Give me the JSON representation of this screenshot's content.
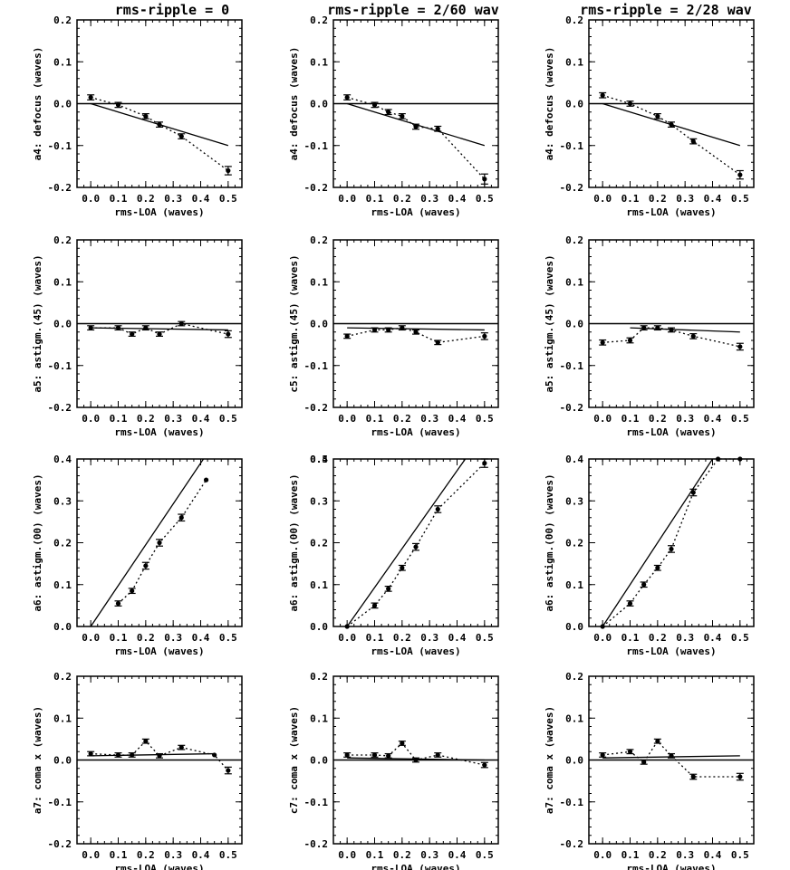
{
  "column_titles": [
    "rms-ripple = 0",
    "rms-ripple = 2/60 wav",
    "rms-ripple = 2/28 wav"
  ],
  "colors": {
    "line": "#000000",
    "background": "#ffffff"
  },
  "chart_data": [
    {
      "type": "line",
      "row": 0,
      "col": 0,
      "xlabel": "rms-LOA (waves)",
      "ylabel": "a4: defocus (waves)",
      "xlim": [
        -0.05,
        0.55
      ],
      "ylim": [
        -0.2,
        0.2
      ],
      "xticks": [
        "0.0",
        "0.1",
        "0.2",
        "0.3",
        "0.4",
        "0.5"
      ],
      "yticks": [
        "-0.2",
        "-0.1",
        "0.0",
        "0.1",
        "0.2"
      ],
      "reference_line": {
        "x": [
          0.0,
          0.5
        ],
        "y": [
          0.0,
          -0.1
        ]
      },
      "series": [
        {
          "x": [
            0.0,
            0.1,
            0.2,
            0.25,
            0.33,
            0.5
          ],
          "y": [
            0.015,
            -0.003,
            -0.03,
            -0.05,
            -0.078,
            -0.16
          ],
          "err": [
            0.006,
            0.006,
            0.006,
            0.006,
            0.006,
            0.01
          ]
        }
      ]
    },
    {
      "type": "line",
      "row": 0,
      "col": 1,
      "xlabel": "rms-LOA (waves)",
      "ylabel": "a4: defocus (waves)",
      "xlim": [
        -0.05,
        0.55
      ],
      "ylim": [
        -0.2,
        0.2
      ],
      "xticks": [
        "0.0",
        "0.1",
        "0.2",
        "0.3",
        "0.4",
        "0.5"
      ],
      "yticks": [
        "-0.2",
        "-0.1",
        "0.0",
        "0.1",
        "0.2"
      ],
      "reference_line": {
        "x": [
          0.0,
          0.5
        ],
        "y": [
          0.0,
          -0.1
        ]
      },
      "series": [
        {
          "x": [
            0.0,
            0.1,
            0.15,
            0.2,
            0.25,
            0.33,
            0.5
          ],
          "y": [
            0.015,
            -0.003,
            -0.02,
            -0.03,
            -0.055,
            -0.06,
            -0.18
          ],
          "err": [
            0.006,
            0.006,
            0.006,
            0.006,
            0.006,
            0.006,
            0.012
          ]
        }
      ]
    },
    {
      "type": "line",
      "row": 0,
      "col": 2,
      "xlabel": "rms-LOA (waves)",
      "ylabel": "a4: defocus (waves)",
      "xlim": [
        -0.05,
        0.55
      ],
      "ylim": [
        -0.2,
        0.2
      ],
      "xticks": [
        "0.0",
        "0.1",
        "0.2",
        "0.3",
        "0.4",
        "0.5"
      ],
      "yticks": [
        "-0.2",
        "-0.1",
        "0.0",
        "0.1",
        "0.2"
      ],
      "reference_line": {
        "x": [
          0.0,
          0.5
        ],
        "y": [
          0.0,
          -0.1
        ]
      },
      "series": [
        {
          "x": [
            0.0,
            0.1,
            0.2,
            0.25,
            0.33,
            0.5
          ],
          "y": [
            0.02,
            0.0,
            -0.03,
            -0.05,
            -0.09,
            -0.17
          ],
          "err": [
            0.006,
            0.006,
            0.006,
            0.006,
            0.006,
            0.01
          ]
        }
      ]
    },
    {
      "type": "line",
      "row": 1,
      "col": 0,
      "xlabel": "rms-LOA (waves)",
      "ylabel": "a5: astigm.(45) (waves)",
      "xlim": [
        -0.05,
        0.55
      ],
      "ylim": [
        -0.2,
        0.2
      ],
      "xticks": [
        "0.0",
        "0.1",
        "0.2",
        "0.3",
        "0.4",
        "0.5"
      ],
      "yticks": [
        "-0.2",
        "-0.1",
        "0.0",
        "0.1",
        "0.2"
      ],
      "reference_line": {
        "x": [
          0.0,
          0.5
        ],
        "y": [
          -0.01,
          -0.015
        ]
      },
      "series": [
        {
          "x": [
            0.0,
            0.1,
            0.15,
            0.2,
            0.25,
            0.33,
            0.5
          ],
          "y": [
            -0.01,
            -0.01,
            -0.025,
            -0.01,
            -0.025,
            0.0,
            -0.025
          ],
          "err": [
            0.005,
            0.005,
            0.005,
            0.005,
            0.005,
            0.005,
            0.008
          ]
        }
      ]
    },
    {
      "type": "line",
      "row": 1,
      "col": 1,
      "xlabel": "rms-LOA (waves)",
      "ylabel": "c5: astigm.(45) (waves)",
      "xlim": [
        -0.05,
        0.55
      ],
      "ylim": [
        -0.2,
        0.2
      ],
      "xticks": [
        "0.0",
        "0.1",
        "0.2",
        "0.3",
        "0.4",
        "0.5"
      ],
      "yticks": [
        "-0.2",
        "-0.1",
        "0.0",
        "0.1",
        "0.2"
      ],
      "reference_line": {
        "x": [
          0.0,
          0.5
        ],
        "y": [
          -0.01,
          -0.015
        ]
      },
      "series": [
        {
          "x": [
            0.0,
            0.1,
            0.15,
            0.2,
            0.25,
            0.33,
            0.5
          ],
          "y": [
            -0.03,
            -0.015,
            -0.015,
            -0.01,
            -0.02,
            -0.045,
            -0.03
          ],
          "err": [
            0.005,
            0.005,
            0.005,
            0.005,
            0.005,
            0.005,
            0.008
          ]
        }
      ]
    },
    {
      "type": "line",
      "row": 1,
      "col": 2,
      "xlabel": "rms-LOA (waves)",
      "ylabel": "a5: astigm.(45) (waves)",
      "xlim": [
        -0.05,
        0.55
      ],
      "ylim": [
        -0.2,
        0.2
      ],
      "xticks": [
        "0.0",
        "0.1",
        "0.2",
        "0.3",
        "0.4",
        "0.5"
      ],
      "yticks": [
        "-0.2",
        "-0.1",
        "0.0",
        "0.1",
        "0.2"
      ],
      "reference_line": {
        "x": [
          0.1,
          0.5
        ],
        "y": [
          -0.01,
          -0.02
        ]
      },
      "series": [
        {
          "x": [
            0.0,
            0.1,
            0.15,
            0.2,
            0.25,
            0.33,
            0.5
          ],
          "y": [
            -0.045,
            -0.04,
            -0.01,
            -0.01,
            -0.015,
            -0.03,
            -0.055
          ],
          "err": [
            0.006,
            0.006,
            0.005,
            0.005,
            0.005,
            0.006,
            0.008
          ]
        }
      ]
    },
    {
      "type": "line",
      "row": 2,
      "col": 0,
      "xlabel": "rms-LOA (waves)",
      "ylabel": "a6: astigm.(00) (waves)",
      "xlim": [
        -0.05,
        0.55
      ],
      "ylim": [
        0.0,
        0.4
      ],
      "xticks": [
        "0.0",
        "0.1",
        "0.2",
        "0.3",
        "0.4",
        "0.5"
      ],
      "yticks": [
        "0.0",
        "0.1",
        "0.2",
        "0.3",
        "0.4"
      ],
      "reference_line": {
        "x": [
          0.0,
          0.41
        ],
        "y": [
          0.0,
          0.4
        ]
      },
      "series": [
        {
          "x": [
            0.1,
            0.15,
            0.2,
            0.25,
            0.33,
            0.42
          ],
          "y": [
            0.055,
            0.085,
            0.145,
            0.2,
            0.26,
            0.35
          ],
          "err": [
            0.006,
            0.006,
            0.008,
            0.008,
            0.008,
            0.0
          ]
        }
      ]
    },
    {
      "type": "line",
      "row": 2,
      "col": 1,
      "xlabel": "rms-LOA (waves)",
      "ylabel": "a6: astigm.(00) (waves)",
      "xlim": [
        -0.05,
        0.55
      ],
      "ylim": [
        0.0,
        0.4
      ],
      "xticks": [
        "0.0",
        "0.1",
        "0.2",
        "0.3",
        "0.4",
        "0.5"
      ],
      "yticks": [
        "0.0",
        "0.1",
        "0.2",
        "0.3",
        "0.4",
        "0.5"
      ],
      "reference_line": {
        "x": [
          0.0,
          0.43
        ],
        "y": [
          0.0,
          0.4
        ]
      },
      "series": [
        {
          "x": [
            0.0,
            0.1,
            0.15,
            0.2,
            0.25,
            0.33,
            0.5
          ],
          "y": [
            0.0,
            0.05,
            0.09,
            0.14,
            0.19,
            0.28,
            0.39
          ],
          "err": [
            0.0,
            0.006,
            0.006,
            0.006,
            0.008,
            0.008,
            0.01
          ]
        }
      ]
    },
    {
      "type": "line",
      "row": 2,
      "col": 2,
      "xlabel": "rms-LOA (waves)",
      "ylabel": "a6: astigm.(00) (waves)",
      "xlim": [
        -0.05,
        0.55
      ],
      "ylim": [
        0.0,
        0.4
      ],
      "xticks": [
        "0.0",
        "0.1",
        "0.2",
        "0.3",
        "0.4",
        "0.5"
      ],
      "yticks": [
        "0.0",
        "0.1",
        "0.2",
        "0.3",
        "0.4"
      ],
      "reference_line": {
        "x": [
          0.0,
          0.4
        ],
        "y": [
          0.0,
          0.4
        ]
      },
      "series": [
        {
          "x": [
            0.0,
            0.1,
            0.15,
            0.2,
            0.25,
            0.33,
            0.42,
            0.5
          ],
          "y": [
            0.0,
            0.055,
            0.1,
            0.14,
            0.185,
            0.32,
            0.4,
            0.4
          ],
          "err": [
            0.0,
            0.006,
            0.006,
            0.006,
            0.008,
            0.008,
            0.0,
            0.0
          ]
        }
      ]
    },
    {
      "type": "line",
      "row": 3,
      "col": 0,
      "xlabel": "rms-LOA (waves)",
      "ylabel": "a7: coma x (waves)",
      "xlim": [
        -0.05,
        0.55
      ],
      "ylim": [
        -0.2,
        0.2
      ],
      "xticks": [
        "0.0",
        "0.1",
        "0.2",
        "0.3",
        "0.4",
        "0.5"
      ],
      "yticks": [
        "-0.2",
        "-0.1",
        "0.0",
        "0.1",
        "0.2"
      ],
      "reference_line": {
        "x": [
          0.0,
          0.45
        ],
        "y": [
          0.01,
          0.015
        ]
      },
      "series": [
        {
          "x": [
            0.0,
            0.1,
            0.15,
            0.2,
            0.25,
            0.33,
            0.45,
            0.5
          ],
          "y": [
            0.015,
            0.012,
            0.012,
            0.045,
            0.01,
            0.03,
            0.012,
            -0.025
          ],
          "err": [
            0.005,
            0.005,
            0.005,
            0.005,
            0.005,
            0.005,
            0.0,
            0.008
          ]
        }
      ]
    },
    {
      "type": "line",
      "row": 3,
      "col": 1,
      "xlabel": "rms-LOA (waves)",
      "ylabel": "c7: coma x (waves)",
      "xlim": [
        -0.05,
        0.55
      ],
      "ylim": [
        -0.2,
        0.2
      ],
      "xticks": [
        "0.0",
        "0.1",
        "0.2",
        "0.3",
        "0.4",
        "0.5"
      ],
      "yticks": [
        "-0.2",
        "-0.1",
        "0.0",
        "0.1",
        "0.2"
      ],
      "reference_line": {
        "x": [
          0.0,
          0.5
        ],
        "y": [
          0.005,
          0.0
        ]
      },
      "series": [
        {
          "x": [
            0.0,
            0.1,
            0.15,
            0.2,
            0.25,
            0.33,
            0.5
          ],
          "y": [
            0.012,
            0.012,
            0.01,
            0.04,
            0.0,
            0.012,
            -0.012
          ],
          "err": [
            0.005,
            0.005,
            0.005,
            0.005,
            0.005,
            0.005,
            0.006
          ]
        }
      ]
    },
    {
      "type": "line",
      "row": 3,
      "col": 2,
      "xlabel": "rms-LOA (waves)",
      "ylabel": "a7: coma x (waves)",
      "xlim": [
        -0.05,
        0.55
      ],
      "ylim": [
        -0.2,
        0.2
      ],
      "xticks": [
        "0.0",
        "0.1",
        "0.2",
        "0.3",
        "0.4",
        "0.5"
      ],
      "yticks": [
        "-0.2",
        "-0.1",
        "0.0",
        "0.1",
        "0.2"
      ],
      "reference_line": {
        "x": [
          0.0,
          0.5
        ],
        "y": [
          0.005,
          0.01
        ]
      },
      "series": [
        {
          "x": [
            0.0,
            0.1,
            0.15,
            0.2,
            0.25,
            0.33,
            0.5
          ],
          "y": [
            0.012,
            0.02,
            -0.005,
            0.045,
            0.01,
            -0.04,
            -0.04
          ],
          "err": [
            0.005,
            0.005,
            0.005,
            0.005,
            0.005,
            0.006,
            0.008
          ]
        }
      ]
    }
  ]
}
